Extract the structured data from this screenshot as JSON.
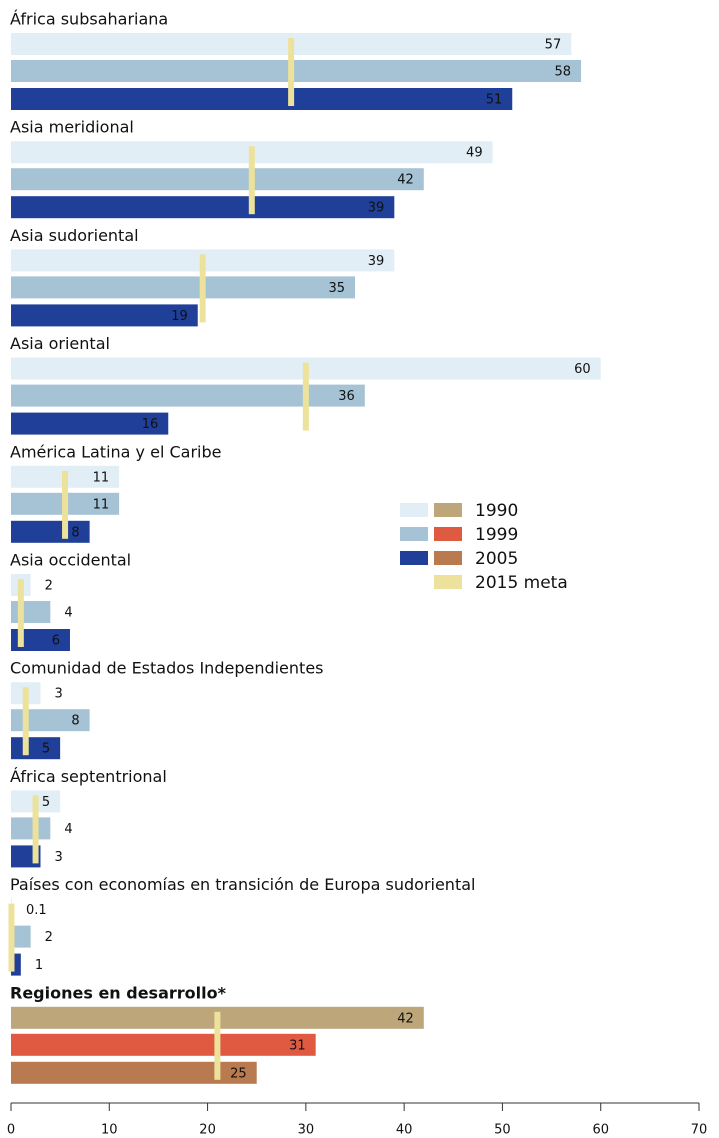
{
  "chart_data": {
    "type": "bar",
    "orientation": "horizontal",
    "categories": [
      "África subsahariana",
      "Asia meridional",
      "Asia sudoriental",
      "Asia oriental",
      "América Latina y el Caribe",
      "Asia occidental",
      "Comunidad de Estados Independientes",
      "África septentrional",
      "Países con economías en transición de Europa sudoriental",
      "Regiones en desarrollo*"
    ],
    "series": [
      {
        "name": "1990",
        "values": [
          57,
          49,
          39,
          60,
          11,
          2,
          3,
          5,
          0.1,
          42
        ],
        "colors": [
          "#e2eef6",
          "#e2eef6",
          "#e2eef6",
          "#e2eef6",
          "#e2eef6",
          "#e2eef6",
          "#e2eef6",
          "#e2eef6",
          "#e2eef6",
          "#bda77a"
        ]
      },
      {
        "name": "1999",
        "values": [
          58,
          42,
          35,
          36,
          11,
          4,
          8,
          4,
          2,
          31
        ],
        "colors": [
          "#a6c3d5",
          "#a6c3d5",
          "#a6c3d5",
          "#a6c3d5",
          "#a6c3d5",
          "#a6c3d5",
          "#a6c3d5",
          "#a6c3d5",
          "#a6c3d5",
          "#e05a41"
        ]
      },
      {
        "name": "2005",
        "values": [
          51,
          39,
          19,
          16,
          8,
          6,
          5,
          3,
          1,
          25
        ],
        "colors": [
          "#1f3f99",
          "#1f3f99",
          "#1f3f99",
          "#1f3f99",
          "#1f3f99",
          "#1f3f99",
          "#1f3f99",
          "#1f3f99",
          "#1f3f99",
          "#b87a4e"
        ]
      }
    ],
    "target": {
      "name": "2015 meta",
      "color": "#ede29b",
      "values": [
        28.5,
        24.5,
        19.5,
        30,
        5.5,
        1,
        1.5,
        2.5,
        0.05,
        21
      ]
    },
    "xlim": [
      0,
      70
    ],
    "xticks": [
      0,
      10,
      20,
      30,
      40,
      50,
      60,
      70
    ]
  }
}
